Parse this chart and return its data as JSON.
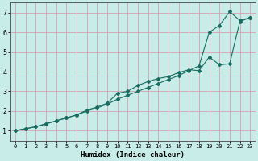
{
  "xlabel": "Humidex (Indice chaleur)",
  "bg_color": "#c8ece8",
  "grid_color": "#d4a0b0",
  "line_color": "#1a6b60",
  "xlim": [
    -0.5,
    23.5
  ],
  "ylim": [
    0.5,
    7.5
  ],
  "xticks": [
    0,
    1,
    2,
    3,
    4,
    5,
    6,
    7,
    8,
    9,
    10,
    11,
    12,
    13,
    14,
    15,
    16,
    17,
    18,
    19,
    20,
    21,
    22,
    23
  ],
  "yticks": [
    1,
    2,
    3,
    4,
    5,
    6,
    7
  ],
  "line1_x": [
    0,
    1,
    2,
    3,
    4,
    5,
    6,
    7,
    8,
    9,
    10,
    11,
    12,
    13,
    14,
    15,
    16,
    17,
    18,
    19,
    20,
    21,
    22,
    23
  ],
  "line1_y": [
    1.0,
    1.1,
    1.2,
    1.35,
    1.5,
    1.65,
    1.8,
    2.0,
    2.15,
    2.35,
    2.6,
    2.8,
    3.0,
    3.2,
    3.4,
    3.6,
    3.8,
    4.05,
    4.3,
    6.0,
    6.35,
    7.05,
    6.6,
    6.75
  ],
  "line2_x": [
    0,
    1,
    2,
    3,
    4,
    5,
    6,
    7,
    8,
    9,
    10,
    11,
    12,
    13,
    14,
    15,
    16,
    17,
    18,
    19,
    20,
    21,
    22,
    23
  ],
  "line2_y": [
    1.0,
    1.1,
    1.2,
    1.35,
    1.5,
    1.65,
    1.8,
    2.05,
    2.2,
    2.4,
    2.9,
    3.0,
    3.3,
    3.5,
    3.65,
    3.75,
    3.95,
    4.1,
    4.05,
    4.75,
    4.35,
    4.4,
    6.55,
    6.75
  ]
}
